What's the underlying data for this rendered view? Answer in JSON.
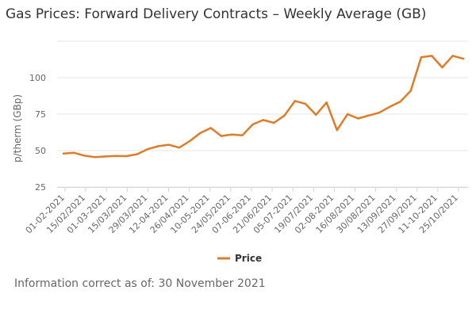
{
  "chart_data": {
    "type": "line",
    "title": "Gas Prices: Forward Delivery Contracts – Weekly Average (GB)",
    "ylabel": "p/therm (GBp)",
    "xlabel": "",
    "ylim": [
      25,
      125
    ],
    "yticks": [
      25,
      50,
      75,
      100
    ],
    "grid": true,
    "legend_position": "bottom-center",
    "x_tick_labels": [
      "01-02-2021",
      "15/02/2021",
      "01-03-2021",
      "15/03/2021",
      "29/03/2021",
      "12-04-2021",
      "26/04/2021",
      "10-05-2021",
      "24/05/2021",
      "07-06-2021",
      "21/06/2021",
      "05-07-2021",
      "19/07/2021",
      "02-08-2021",
      "16/08/2021",
      "30/08/2021",
      "13/09/2021",
      "27/09/2021",
      "11-10-2021",
      "25/10/2021"
    ],
    "series": [
      {
        "name": "Price",
        "color": "#e07b28",
        "values": [
          48,
          48.5,
          46.5,
          45.5,
          46,
          46.3,
          46.2,
          47.5,
          51,
          53,
          54,
          52,
          56.5,
          62,
          65.5,
          60,
          61,
          60.5,
          68,
          71,
          69,
          74,
          84,
          82,
          74.5,
          83,
          64,
          75,
          72,
          74,
          76,
          80,
          83.5,
          91,
          114,
          115,
          107,
          115,
          113
        ]
      }
    ]
  },
  "footer": {
    "label": "Information correct as of:",
    "date": "30 November 2021"
  }
}
